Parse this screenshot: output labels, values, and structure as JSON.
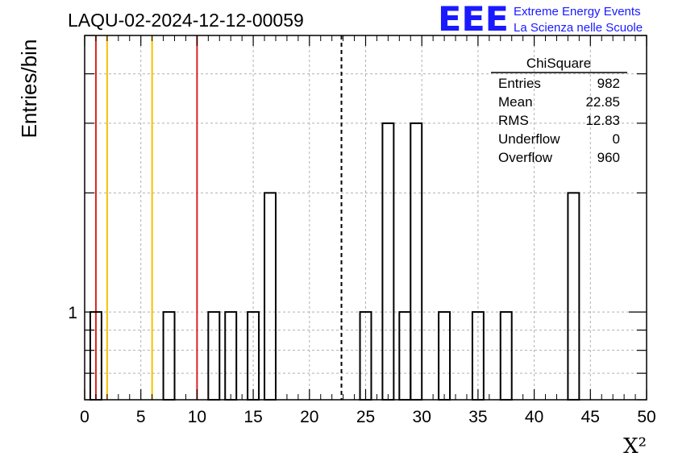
{
  "chart_data": {
    "type": "bar",
    "title": "LAQU-02-2024-12-12-00059",
    "xlabel": "X²",
    "ylabel": "Entries/bin",
    "y_scale": "log",
    "xlim": [
      0,
      50
    ],
    "ylim": [
      0.6,
      5
    ],
    "bin_width": 1,
    "x_ticks": [
      "0",
      "5",
      "10",
      "15",
      "20",
      "25",
      "30",
      "35",
      "40",
      "45",
      "50"
    ],
    "y_tick_labels": [
      {
        "value": 1,
        "label": "1"
      }
    ],
    "bins": [
      {
        "x": 1,
        "value": 1
      },
      {
        "x": 7.5,
        "value": 1
      },
      {
        "x": 11.5,
        "value": 1
      },
      {
        "x": 13,
        "value": 1
      },
      {
        "x": 15,
        "value": 1
      },
      {
        "x": 16.5,
        "value": 2
      },
      {
        "x": 25,
        "value": 1
      },
      {
        "x": 27,
        "value": 3
      },
      {
        "x": 28.5,
        "value": 1
      },
      {
        "x": 29.5,
        "value": 3
      },
      {
        "x": 32,
        "value": 1
      },
      {
        "x": 35,
        "value": 1
      },
      {
        "x": 37.5,
        "value": 1
      },
      {
        "x": 43.5,
        "value": 2
      }
    ],
    "vlines": [
      {
        "x": 1,
        "color": "#dd2222",
        "style": "solid"
      },
      {
        "x": 2,
        "color": "#f5c300",
        "style": "solid"
      },
      {
        "x": 6,
        "color": "#f5c300",
        "style": "solid"
      },
      {
        "x": 10,
        "color": "#dd2222",
        "style": "solid"
      },
      {
        "x": 22.85,
        "color": "#000000",
        "style": "dashed"
      }
    ],
    "grid": true,
    "stats_box": {
      "title": "ChiSquare",
      "rows": [
        {
          "label": "Entries",
          "value": "982"
        },
        {
          "label": "Mean",
          "value": "22.85"
        },
        {
          "label": "RMS",
          "value": "12.83"
        },
        {
          "label": "Underflow",
          "value": "0"
        },
        {
          "label": "Overflow",
          "value": "960"
        }
      ]
    }
  },
  "logo": {
    "letters": "EEE",
    "line1": "Extreme Energy Events",
    "line2": "La Scienza nelle Scuole",
    "color": "#1a1aff"
  }
}
